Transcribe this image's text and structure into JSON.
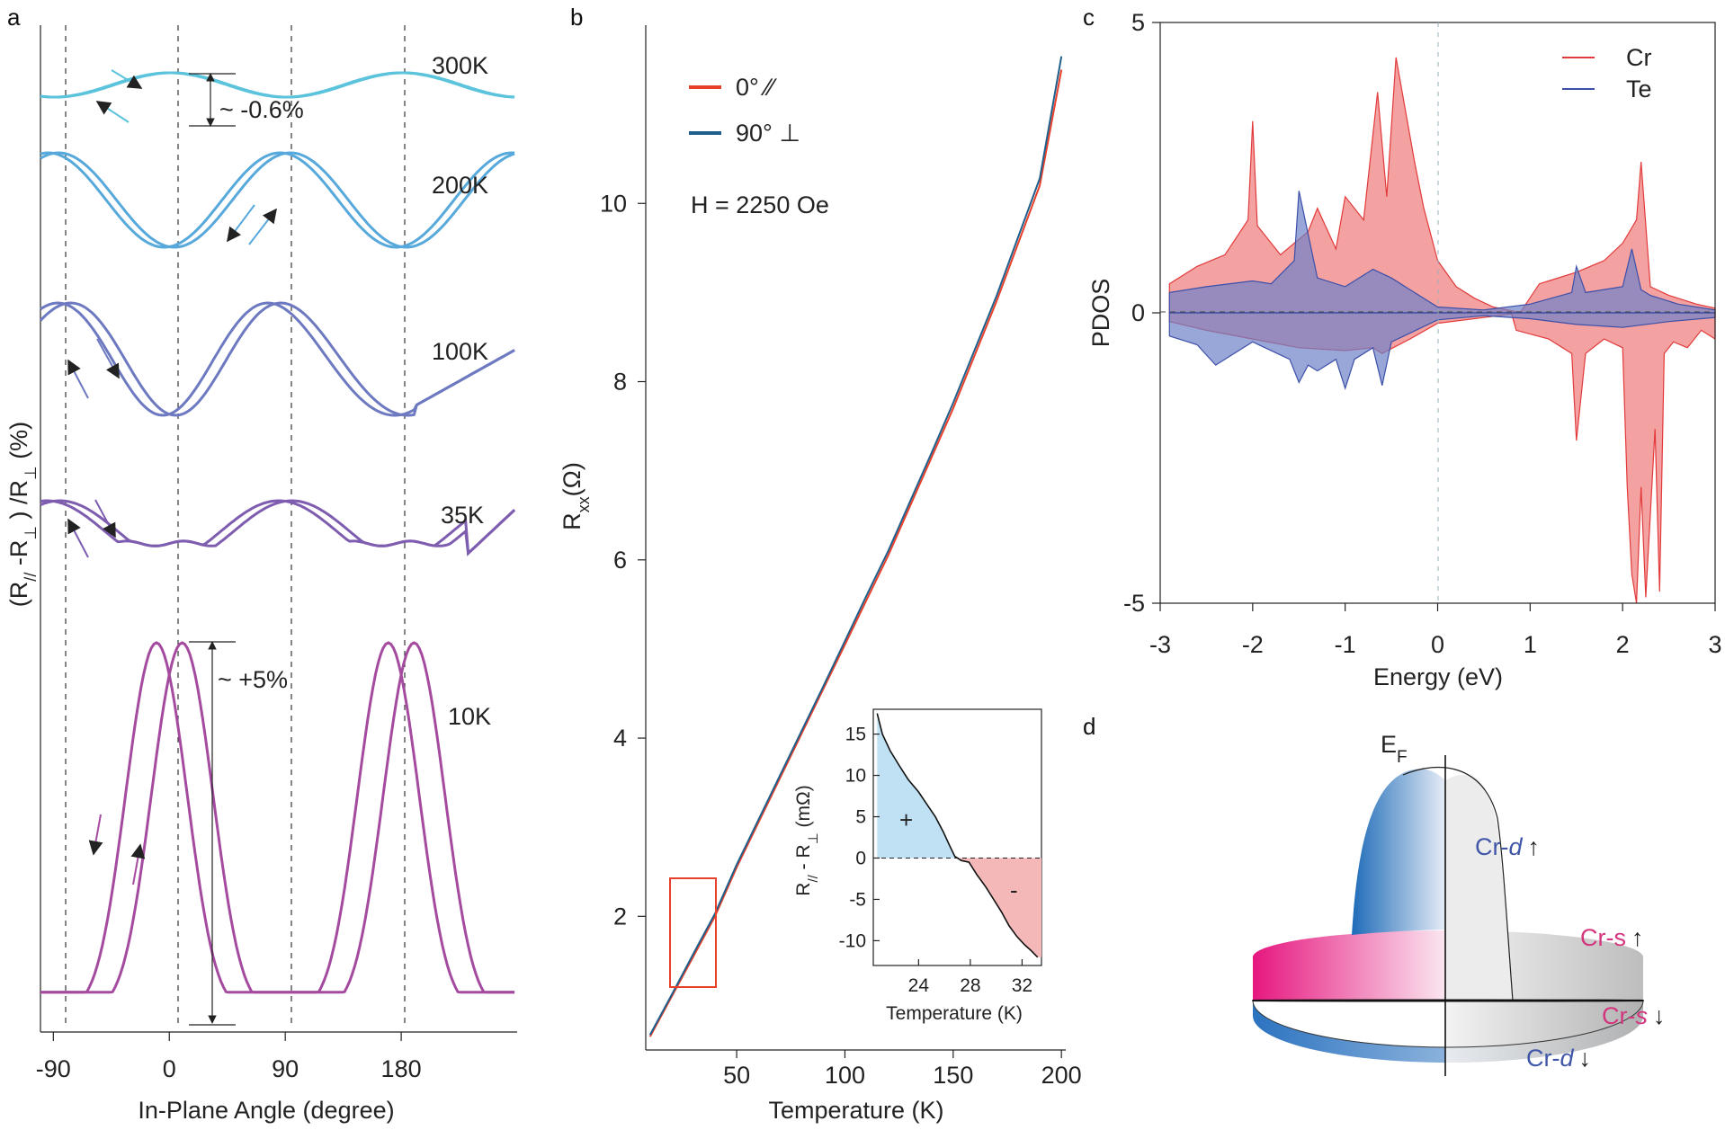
{
  "panel_labels": [
    "a",
    "b",
    "c",
    "d"
  ],
  "chart_data": [
    {
      "id": "a",
      "type": "line",
      "title": "",
      "xlabel": "In-Plane Angle (degree)",
      "ylabel_parts": [
        "(R",
        "//",
        " -R",
        "⊥",
        " ) /R",
        "⊥",
        "  (%)"
      ],
      "xticks": [
        -90,
        0,
        90,
        180
      ],
      "xlim": [
        -100,
        270
      ],
      "series": [
        {
          "name": "300K",
          "color": "#5bc3dc",
          "amplitude_pct": 0.6,
          "annotation": "~ -0.6%"
        },
        {
          "name": "200K",
          "color": "#57a9dc",
          "amplitude_pct": 1.2
        },
        {
          "name": "100K",
          "color": "#6d79c0",
          "amplitude_pct": 1.0
        },
        {
          "name": "35K",
          "color": "#7e5db0",
          "amplitude_pct": 0.6
        },
        {
          "name": "10K",
          "color": "#a44b9f",
          "amplitude_pct": 5.0,
          "annotation": "~ +5%"
        }
      ]
    },
    {
      "id": "b",
      "type": "line",
      "xlabel": "Temperature (K)",
      "ylabel": "R",
      "ylabel_sub": "xx",
      "ylabel_unit": "(Ω)",
      "xlim": [
        8,
        202
      ],
      "ylim": [
        0.5,
        12
      ],
      "xticks": [
        50,
        100,
        150,
        200
      ],
      "yticks": [
        2,
        4,
        6,
        8,
        10
      ],
      "annotation": "H = 2250 Oe",
      "legend": [
        {
          "label": "0° ∕∕",
          "color": "#e8402a"
        },
        {
          "label": "90° ⊥",
          "color": "#1f5f8b"
        }
      ],
      "series": [
        {
          "name": "0°",
          "color": "#e8402a",
          "x": [
            10,
            20,
            30,
            40,
            50,
            60,
            70,
            80,
            90,
            100,
            110,
            120,
            130,
            140,
            150,
            160,
            170,
            180,
            190,
            200
          ],
          "y": [
            0.65,
            1.1,
            1.55,
            2.0,
            2.55,
            3.05,
            3.55,
            4.05,
            4.55,
            5.05,
            5.55,
            6.05,
            6.6,
            7.15,
            7.7,
            8.3,
            8.9,
            9.55,
            10.2,
            11.5
          ]
        },
        {
          "name": "90°",
          "color": "#1f5f8b",
          "x": [
            10,
            20,
            30,
            40,
            50,
            60,
            70,
            80,
            90,
            100,
            110,
            120,
            130,
            140,
            150,
            160,
            170,
            180,
            190,
            200
          ],
          "y": [
            0.67,
            1.12,
            1.58,
            2.03,
            2.58,
            3.08,
            3.58,
            4.08,
            4.58,
            5.09,
            5.6,
            6.1,
            6.65,
            7.2,
            7.76,
            8.36,
            8.96,
            9.62,
            10.28,
            11.65
          ]
        }
      ],
      "inset": {
        "xlabel": "Temperature (K)",
        "ylabel_parts": [
          "R",
          "//",
          " - R",
          "⊥",
          "   (mΩ)"
        ],
        "xticks": [
          24,
          28,
          32
        ],
        "yticks": [
          15,
          10,
          5,
          0,
          -5,
          -10
        ],
        "xlim": [
          20.5,
          33.5
        ],
        "ylim": [
          -13,
          18
        ],
        "x": [
          20.8,
          21.2,
          21.8,
          22.5,
          23.2,
          24.0,
          24.6,
          25.3,
          25.9,
          26.4,
          26.8,
          27.3,
          27.9,
          28.5,
          29.2,
          29.8,
          30.4,
          31.0,
          31.6,
          32.2,
          32.7,
          33.2
        ],
        "y": [
          17.5,
          15.0,
          13.0,
          11.2,
          9.5,
          8.0,
          6.6,
          5.0,
          3.2,
          1.5,
          0.2,
          -0.3,
          -0.5,
          -2.0,
          -3.5,
          -5.0,
          -6.5,
          -8.2,
          -9.5,
          -10.5,
          -11.2,
          -12.0
        ],
        "signs": [
          "+",
          "-"
        ]
      }
    },
    {
      "id": "c",
      "type": "area",
      "xlabel": "Energy (eV)",
      "ylabel": "PDOS",
      "xlim": [
        -3,
        3
      ],
      "ylim": [
        -5,
        5
      ],
      "xticks": [
        -3,
        -2,
        -1,
        0,
        1,
        2,
        3
      ],
      "yticks": [
        5,
        0,
        -5
      ],
      "legend": [
        {
          "label": "Cr",
          "color": "#e23a3a"
        },
        {
          "label": "Te",
          "color": "#3c4fa8"
        }
      ],
      "series": [
        {
          "name": "Cr",
          "spin": "up",
          "color": "#e23a3a",
          "x": [
            -2.9,
            -2.6,
            -2.3,
            -2.05,
            -2.0,
            -1.95,
            -1.7,
            -1.4,
            -1.3,
            -1.1,
            -1.0,
            -0.8,
            -0.65,
            -0.55,
            -0.45,
            -0.35,
            -0.25,
            -0.15,
            0.0,
            0.2,
            0.4,
            0.6,
            0.85,
            0.9,
            1.1,
            1.2,
            1.5,
            1.8,
            2.0,
            2.15,
            2.2,
            2.3,
            2.5,
            2.8,
            3.0
          ],
          "y": [
            0.5,
            0.8,
            1.0,
            1.6,
            3.3,
            1.5,
            1.0,
            1.4,
            1.8,
            1.1,
            2.0,
            1.6,
            3.8,
            2.0,
            4.4,
            3.5,
            2.6,
            1.8,
            0.9,
            0.45,
            0.25,
            0.1,
            0.02,
            0.02,
            0.5,
            0.55,
            0.7,
            0.9,
            1.2,
            1.6,
            2.6,
            0.45,
            0.3,
            0.15,
            0.08
          ]
        },
        {
          "name": "Cr",
          "spin": "down",
          "color": "#e23a3a",
          "x": [
            -2.9,
            -2.5,
            -2.0,
            -1.5,
            -1.0,
            -0.7,
            -0.6,
            -0.3,
            0.0,
            0.5,
            0.8,
            0.85,
            1.2,
            1.45,
            1.5,
            1.6,
            1.8,
            2.0,
            2.05,
            2.1,
            2.15,
            2.2,
            2.25,
            2.35,
            2.4,
            2.45,
            2.55,
            2.7,
            2.85,
            3.0
          ],
          "y": [
            -0.15,
            -0.3,
            -0.45,
            -0.6,
            -0.65,
            -0.6,
            -0.7,
            -0.45,
            -0.18,
            -0.08,
            -0.02,
            -0.3,
            -0.45,
            -0.7,
            -2.2,
            -0.7,
            -0.45,
            -0.6,
            -3.0,
            -4.5,
            -5.0,
            -3.0,
            -4.9,
            -2.0,
            -4.8,
            -0.7,
            -0.5,
            -0.6,
            -0.3,
            -0.45
          ]
        },
        {
          "name": "Te",
          "spin": "up",
          "color": "#3c4fa8",
          "x": [
            -2.9,
            -2.5,
            -2.0,
            -1.8,
            -1.55,
            -1.5,
            -1.3,
            -1.0,
            -0.7,
            -0.5,
            -0.3,
            0.0,
            0.5,
            1.0,
            1.45,
            1.5,
            1.6,
            2.0,
            2.1,
            2.2,
            2.3,
            2.6,
            3.0
          ],
          "y": [
            0.35,
            0.45,
            0.55,
            0.5,
            0.9,
            2.1,
            0.6,
            0.45,
            0.75,
            0.6,
            0.4,
            0.1,
            0.05,
            0.15,
            0.35,
            0.8,
            0.35,
            0.45,
            1.1,
            0.4,
            0.3,
            0.15,
            0.05
          ]
        },
        {
          "name": "Te",
          "spin": "down",
          "color": "#3c4fa8",
          "x": [
            -2.9,
            -2.6,
            -2.4,
            -2.0,
            -1.6,
            -1.5,
            -1.4,
            -1.3,
            -1.1,
            -1.0,
            -0.9,
            -0.7,
            -0.6,
            -0.5,
            -0.3,
            0.0,
            0.5,
            1.0,
            1.5,
            2.0,
            2.5,
            3.0
          ],
          "y": [
            -0.4,
            -0.55,
            -0.9,
            -0.5,
            -0.8,
            -1.2,
            -0.9,
            -1.0,
            -0.8,
            -1.3,
            -0.8,
            -0.6,
            -1.25,
            -0.5,
            -0.35,
            -0.12,
            -0.05,
            -0.1,
            -0.2,
            -0.25,
            -0.15,
            -0.08
          ]
        }
      ]
    }
  ],
  "diagram_d": {
    "ef_label": "E",
    "ef_sub": "F",
    "labels": [
      {
        "text": "Cr-",
        "italic": "d",
        "arrow": "↑",
        "color": "#4056a8"
      },
      {
        "text": "Cr-s",
        "italic": "",
        "arrow": "↑",
        "color": "#d4357f"
      },
      {
        "text": "Cr-",
        "italic": "s",
        "arrow": "↓",
        "color": "#d4357f"
      },
      {
        "text": "Cr-",
        "italic": "d",
        "arrow": "↓",
        "color": "#4056a8"
      }
    ]
  }
}
